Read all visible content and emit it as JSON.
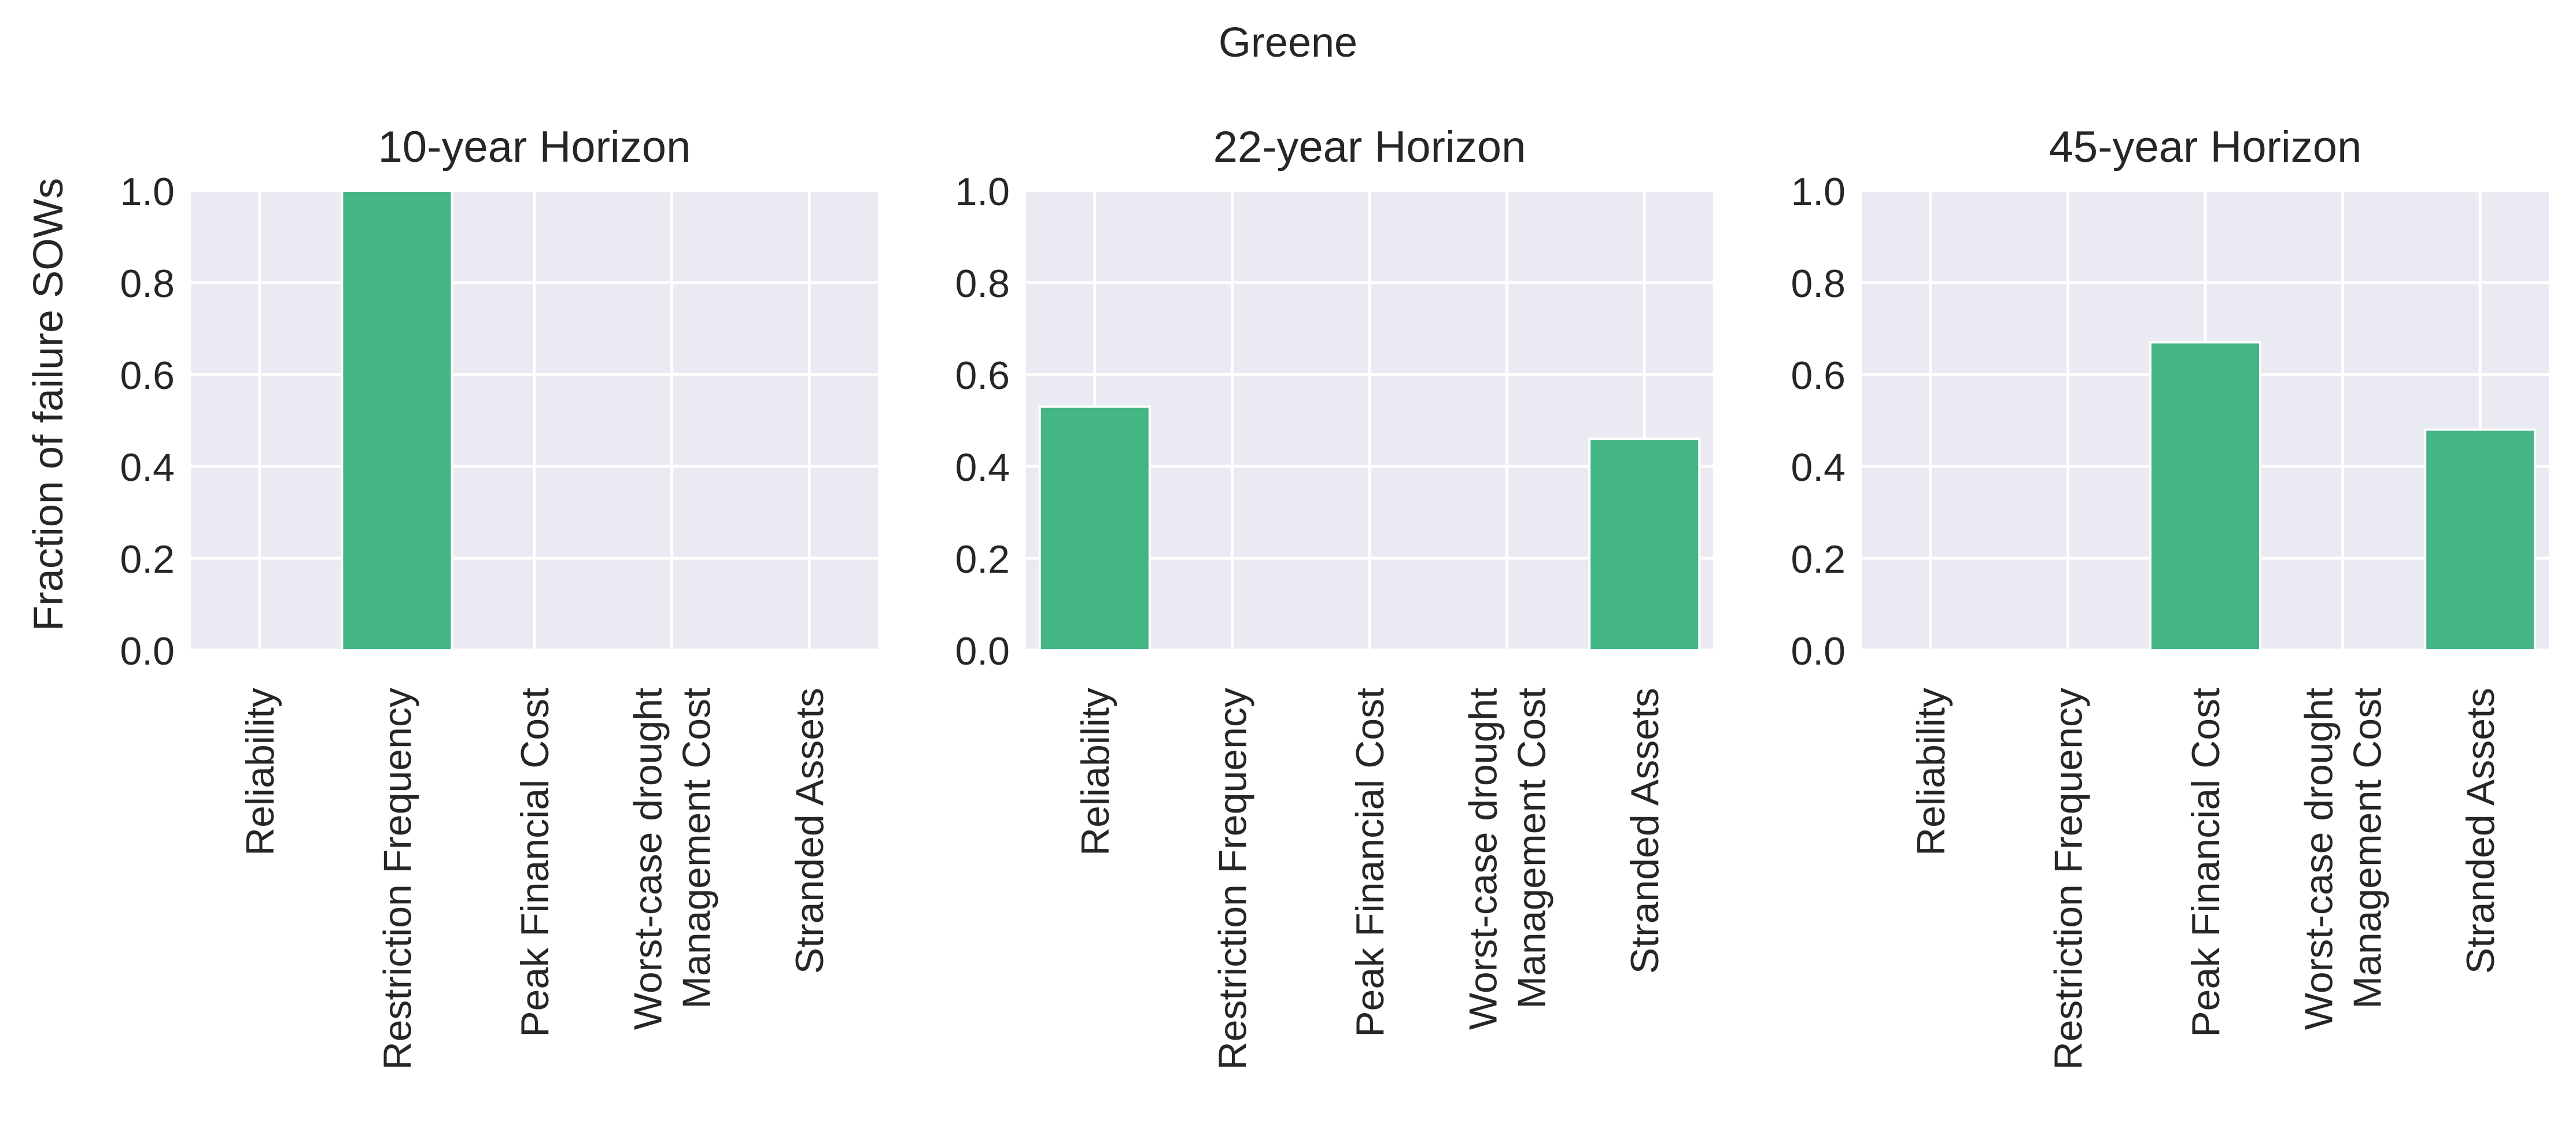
{
  "figure": {
    "title": "Greene",
    "ylabel": "Fraction of failure SOWs"
  },
  "colors": {
    "bar": "#44b585",
    "plot_background": "#eaeaf2",
    "grid": "#ffffff",
    "text": "#262626"
  },
  "chart_data": [
    {
      "type": "bar",
      "title": "10-year Horizon",
      "categories": [
        "Reliability",
        "Restriction Frequency",
        "Peak Financial Cost",
        "Worst-case drought\nManagement Cost",
        "Stranded Assets"
      ],
      "values": [
        0.0,
        1.0,
        0.0,
        0.0,
        0.0
      ],
      "ylim": [
        0,
        1.0
      ],
      "yticks": [
        "0.0",
        "0.2",
        "0.4",
        "0.6",
        "0.8",
        "1.0"
      ],
      "ylabel": "Fraction of failure SOWs",
      "grid": true
    },
    {
      "type": "bar",
      "title": "22-year Horizon",
      "categories": [
        "Reliability",
        "Restriction Frequency",
        "Peak Financial Cost",
        "Worst-case drought\nManagement Cost",
        "Stranded Assets"
      ],
      "values": [
        0.53,
        0.0,
        0.0,
        0.0,
        0.46
      ],
      "ylim": [
        0,
        1.0
      ],
      "yticks": [
        "0.0",
        "0.2",
        "0.4",
        "0.6",
        "0.8",
        "1.0"
      ],
      "grid": true
    },
    {
      "type": "bar",
      "title": "45-year Horizon",
      "categories": [
        "Reliability",
        "Restriction Frequency",
        "Peak Financial Cost",
        "Worst-case drought\nManagement Cost",
        "Stranded Assets"
      ],
      "values": [
        0.0,
        0.0,
        0.67,
        0.0,
        0.48
      ],
      "ylim": [
        0,
        1.0
      ],
      "yticks": [
        "0.0",
        "0.2",
        "0.4",
        "0.6",
        "0.8",
        "1.0"
      ],
      "grid": true
    }
  ]
}
